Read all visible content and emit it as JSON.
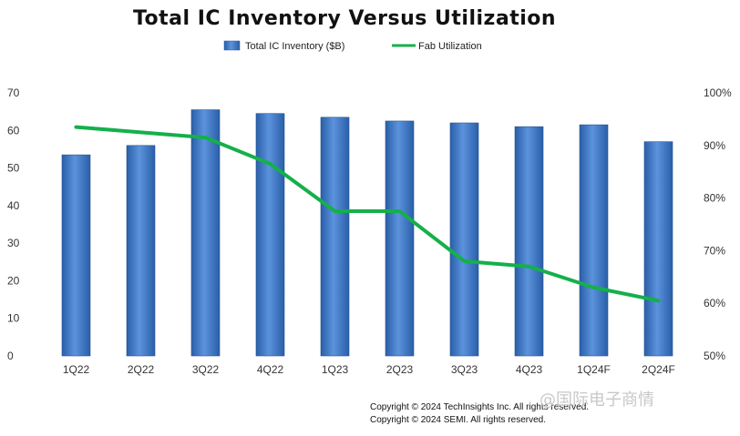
{
  "chart_data": {
    "type": "bar",
    "title": "Total IC Inventory Versus Utilization",
    "categories": [
      "1Q22",
      "2Q22",
      "3Q22",
      "4Q22",
      "1Q23",
      "2Q23",
      "3Q23",
      "4Q23",
      "1Q24F",
      "2Q24F"
    ],
    "series": [
      {
        "name": "Total IC Inventory ($B)",
        "type": "bar",
        "axis": "left",
        "color": "#3a72c4",
        "values": [
          53.5,
          56,
          65.5,
          64.5,
          63.5,
          62.5,
          62,
          61,
          61.5,
          57
        ]
      },
      {
        "name": "Fab Utilization",
        "type": "line",
        "axis": "right",
        "color": "#14b04a",
        "values": [
          93.5,
          92.5,
          91.5,
          86.5,
          77.5,
          77.5,
          68,
          67,
          63,
          60.5
        ]
      }
    ],
    "y_left": {
      "lim": [
        0,
        70
      ],
      "ticks": [
        "0",
        "10",
        "20",
        "30",
        "40",
        "50",
        "60",
        "70"
      ]
    },
    "y_right": {
      "lim": [
        50,
        100
      ],
      "ticks": [
        "50%",
        "60%",
        "70%",
        "80%",
        "90%",
        "100%"
      ]
    },
    "grid": false,
    "legend_position": "top-center"
  },
  "footer": {
    "line1": "Copyright © 2024 TechInsights Inc. All rights reserved.",
    "line2": "Copyright © 2024 SEMI.  All rights reserved."
  },
  "watermark": "@国际电子商情"
}
